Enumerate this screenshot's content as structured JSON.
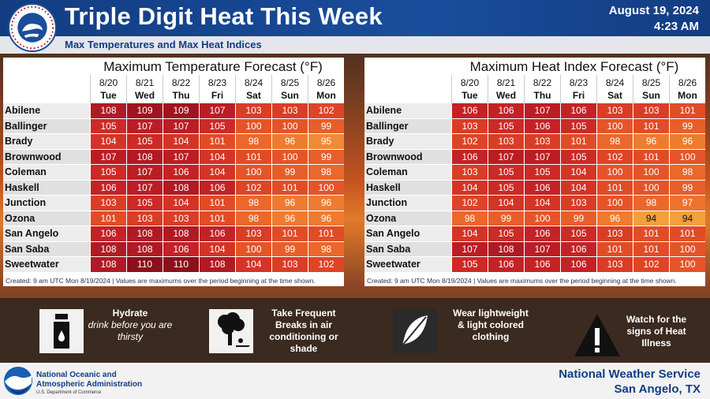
{
  "header": {
    "title": "Triple Digit Heat This Week",
    "date": "August 19, 2024",
    "time": "4:23 AM",
    "subtitle": "Max Temperatures and Max Heat Indices"
  },
  "days": [
    {
      "date": "8/20",
      "dow": "Tue"
    },
    {
      "date": "8/21",
      "dow": "Wed"
    },
    {
      "date": "8/22",
      "dow": "Thu"
    },
    {
      "date": "8/23",
      "dow": "Fri"
    },
    {
      "date": "8/24",
      "dow": "Sat"
    },
    {
      "date": "8/25",
      "dow": "Sun"
    },
    {
      "date": "8/26",
      "dow": "Mon"
    }
  ],
  "cities": [
    "Abilene",
    "Ballinger",
    "Brady",
    "Brownwood",
    "Coleman",
    "Haskell",
    "Junction",
    "Ozona",
    "San Angelo",
    "San Saba",
    "Sweetwater"
  ],
  "temperature_panel": {
    "title": "Maximum Temperature Forecast (°F)",
    "values": [
      [
        108,
        109,
        109,
        107,
        103,
        103,
        102
      ],
      [
        105,
        107,
        107,
        105,
        100,
        100,
        99
      ],
      [
        104,
        105,
        104,
        101,
        98,
        96,
        95
      ],
      [
        107,
        108,
        107,
        104,
        101,
        100,
        99
      ],
      [
        105,
        107,
        106,
        104,
        100,
        99,
        98
      ],
      [
        106,
        107,
        108,
        106,
        102,
        101,
        100
      ],
      [
        103,
        105,
        104,
        101,
        98,
        96,
        96
      ],
      [
        101,
        103,
        103,
        101,
        98,
        96,
        96
      ],
      [
        106,
        108,
        108,
        106,
        103,
        101,
        101
      ],
      [
        108,
        108,
        106,
        104,
        100,
        99,
        98
      ],
      [
        108,
        110,
        110,
        108,
        104,
        103,
        102
      ]
    ],
    "footnote": "Created: 9 am UTC Mon 8/19/2024  |  Values are maximums over the period beginning at the time shown."
  },
  "heat_index_panel": {
    "title": "Maximum Heat Index Forecast (°F)",
    "values": [
      [
        106,
        106,
        107,
        106,
        103,
        103,
        101
      ],
      [
        103,
        105,
        106,
        105,
        100,
        101,
        99
      ],
      [
        102,
        103,
        103,
        101,
        98,
        96,
        96
      ],
      [
        106,
        107,
        107,
        105,
        102,
        101,
        100
      ],
      [
        103,
        105,
        105,
        104,
        100,
        100,
        98
      ],
      [
        104,
        105,
        106,
        104,
        101,
        100,
        99
      ],
      [
        102,
        104,
        104,
        103,
        100,
        98,
        97
      ],
      [
        98,
        99,
        100,
        99,
        96,
        94,
        94
      ],
      [
        104,
        105,
        106,
        105,
        103,
        101,
        101
      ],
      [
        107,
        108,
        107,
        106,
        101,
        101,
        100
      ],
      [
        105,
        106,
        106,
        106,
        103,
        102,
        100
      ]
    ],
    "footnote": "Created: 9 am UTC Mon 8/19/2024  |  Values are maximums over the period beginning at the time shown."
  },
  "color_scale": {
    "110": "#8c0f1c",
    "109": "#9e1420",
    "108": "#b01a24",
    "107": "#bb1d24",
    "106": "#c42226",
    "105": "#cc2a26",
    "104": "#d43426",
    "103": "#d93d26",
    "102": "#de4426",
    "101": "#e14c27",
    "100": "#e55428",
    "99": "#e85e2a",
    "98": "#eb672b",
    "97": "#ee722e",
    "96": "#ef7b30",
    "95": "#f08a36",
    "94": "#f2a03c"
  },
  "tips": [
    {
      "icon": "water-bottle-icon",
      "bold": "Hydrate",
      "italic": "drink before you are thirsty"
    },
    {
      "icon": "person-under-tree-icon",
      "bold": "Take Frequent Breaks in air conditioning or shade",
      "italic": ""
    },
    {
      "icon": "feather-icon",
      "bold": "Wear lightweight & light colored clothing",
      "italic": ""
    },
    {
      "icon": "warning-icon",
      "bold": "Watch for the signs of Heat Illness",
      "italic": ""
    }
  ],
  "footer": {
    "noaa_name_line1": "National Oceanic and",
    "noaa_name_line2": "Atmospheric Administration",
    "noaa_dept": "U.S. Department of Commerce",
    "office_line1": "National Weather Service",
    "office_line2": "San Angelo, TX"
  },
  "logos": {
    "nws": "NATIONAL WEATHER SERVICE",
    "noaa": "NOAA"
  }
}
